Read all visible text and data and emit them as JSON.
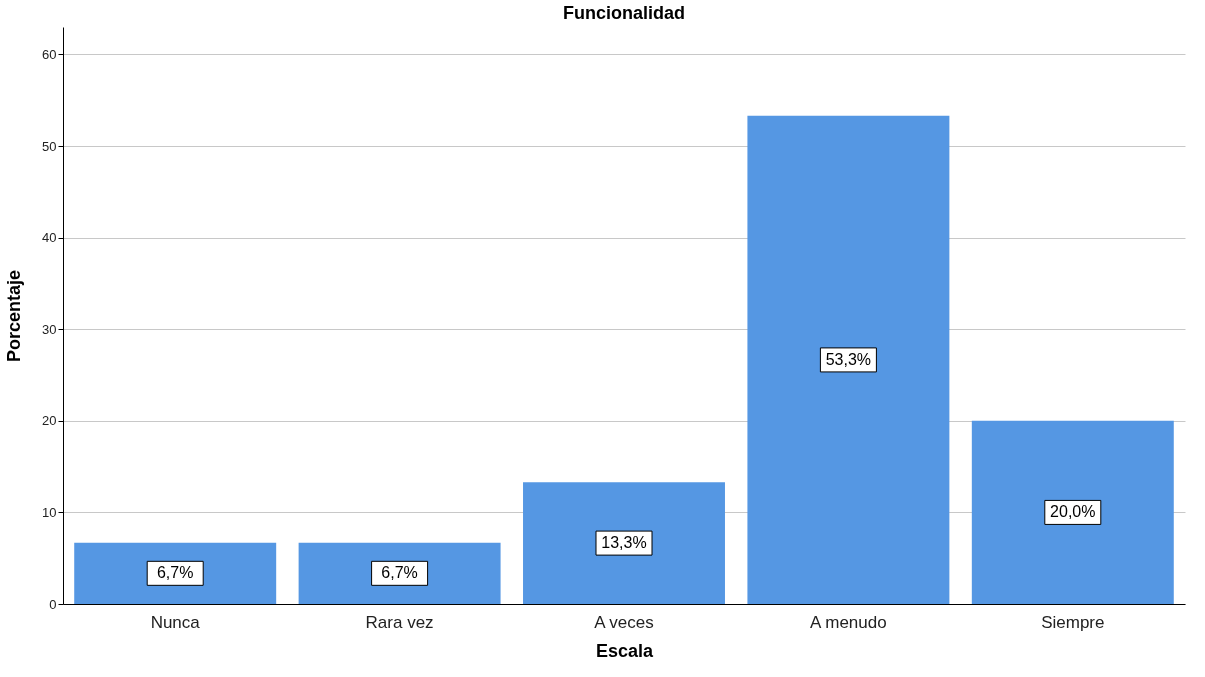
{
  "chart_data": {
    "type": "bar",
    "title": "Funcionalidad",
    "xlabel": "Escala",
    "ylabel": "Porcentaje",
    "categories": [
      "Nunca",
      "Rara vez",
      "A veces",
      "A menudo",
      "Siempre"
    ],
    "values": [
      6.7,
      6.7,
      13.3,
      53.3,
      20.0
    ],
    "value_labels": [
      "6,7%",
      "6,7%",
      "13,3%",
      "53,3%",
      "20,0%"
    ],
    "color": "#5597e3",
    "ylim": [
      0,
      63
    ],
    "yticks": [
      0,
      10,
      20,
      30,
      40,
      50,
      60
    ],
    "grid": "y"
  }
}
